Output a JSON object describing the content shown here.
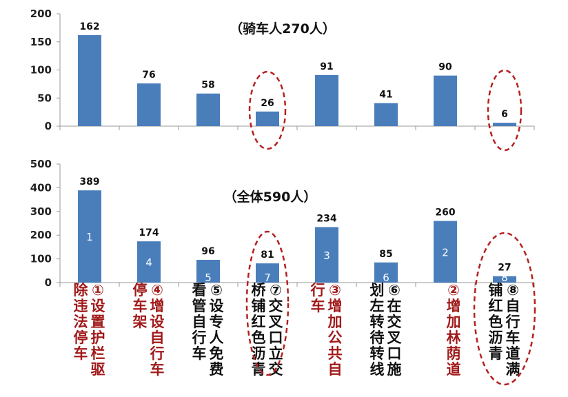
{
  "chart_data": [
    {
      "type": "bar",
      "title": "（骑车人270人）",
      "categories": [
        "①设置护栏驱除违法停车",
        "④增设自行车停车架",
        "⑤设专人免费看管自行车",
        "⑦交叉口立交桥铺红色沥青",
        "③增加公共自行车",
        "⑥在交叉口施划左转待转线",
        "②增加林荫道",
        "⑧自行车道满铺红色沥青"
      ],
      "values": [
        162,
        76,
        58,
        26,
        91,
        41,
        90,
        6
      ],
      "yticks": [
        0,
        50,
        100,
        150,
        200
      ],
      "ylim": [
        0,
        200
      ],
      "highlighted": [
        3,
        7
      ],
      "bar_color": "#4a7ebb"
    },
    {
      "type": "bar",
      "title": "（全体590人）",
      "categories": [
        "①设置护栏驱除违法停车",
        "④增设自行车停车架",
        "⑤设专人免费看管自行车",
        "⑦交叉口立交桥铺红色沥青",
        "③增加公共自行车",
        "⑥在交叉口施划左转待转线",
        "②增加林荫道",
        "⑧自行车道满铺红色沥青"
      ],
      "values": [
        389,
        174,
        96,
        81,
        234,
        85,
        260,
        27
      ],
      "ranks": [
        "1",
        "4",
        "5",
        "7",
        "3",
        "6",
        "2",
        "8"
      ],
      "yticks": [
        0,
        100,
        200,
        300,
        400,
        500
      ],
      "ylim": [
        0,
        500
      ],
      "highlighted": [
        3,
        7
      ],
      "bar_color": "#4a7ebb"
    }
  ],
  "category_labels": [
    {
      "col1": "①设置护栏驱",
      "col2": "除违法停车",
      "color": "#a11a1a"
    },
    {
      "col1": "④增设自行车",
      "col2": "停车架",
      "color": "#a11a1a"
    },
    {
      "col1": "⑤设专人免费",
      "col2": "看管自行车",
      "color": "#111111"
    },
    {
      "col1": "⑦交叉口立交",
      "col2": "桥铺红色沥青",
      "color": "#111111"
    },
    {
      "col1": "③增加公共自",
      "col2": "行车",
      "color": "#a11a1a"
    },
    {
      "col1": "⑥在交叉口施",
      "col2": "划左转待转线",
      "color": "#111111"
    },
    {
      "col1": "②增加林荫道",
      "col2": "",
      "color": "#a11a1a"
    },
    {
      "col1": "⑧自行车道满",
      "col2": "铺红色沥青",
      "color": "#111111"
    }
  ],
  "colors": {
    "highlight_ring": "#b52020",
    "axis": "#999999",
    "bar": "#4a7ebb"
  }
}
